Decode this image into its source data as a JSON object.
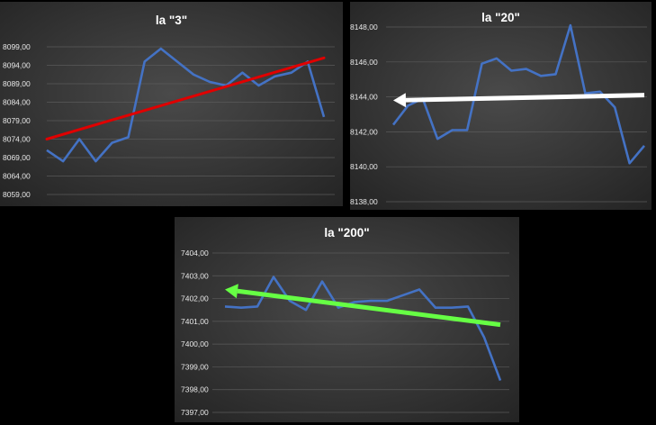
{
  "colors": {
    "background": "#000000",
    "series_line": "#4472C4",
    "gridline": "#5a5a5a"
  },
  "chart_data": [
    {
      "type": "line",
      "title": "la \"3\"",
      "ylim": [
        8059,
        8099
      ],
      "yticks": [
        "8099,00",
        "8094,00",
        "8089,00",
        "8084,00",
        "8079,00",
        "8074,00",
        "8069,00",
        "8064,00",
        "8059,00"
      ],
      "grid": true,
      "series": [
        {
          "values": [
            8071,
            8068,
            8074,
            8068,
            8073,
            8074.5,
            8095,
            8098.5,
            8095,
            8091.5,
            8089.5,
            8088.5,
            8092,
            8088.5,
            8091,
            8092,
            8095,
            8080
          ]
        }
      ],
      "trend_arrow": {
        "color": "#e00000",
        "from": [
          0,
          8074
        ],
        "to": [
          17,
          8096
        ],
        "arrowhead": false
      }
    },
    {
      "type": "line",
      "title": "la \"20\"",
      "ylim": [
        8138,
        8148
      ],
      "yticks": [
        "8148,00",
        "8146,00",
        "8144,00",
        "8142,00",
        "8140,00",
        "8138,00"
      ],
      "grid": true,
      "series": [
        {
          "values": [
            8142.4,
            8143.5,
            8143.9,
            8141.6,
            8142.1,
            8142.1,
            8145.9,
            8146.2,
            8145.5,
            8145.6,
            8145.2,
            8145.3,
            8148.1,
            8144.2,
            8144.3,
            8143.4,
            8140.2,
            8141.2
          ]
        }
      ],
      "trend_arrow": {
        "color": "#ffffff",
        "from": [
          17,
          8144.1
        ],
        "to": [
          0,
          8143.8
        ],
        "arrowhead": true
      }
    },
    {
      "type": "line",
      "title": "la \"200\"",
      "ylim": [
        7397,
        7404
      ],
      "yticks": [
        "7404,00",
        "7403,00",
        "7402,00",
        "7401,00",
        "7400,00",
        "7399,00",
        "7398,00",
        "7397,00"
      ],
      "grid": true,
      "series": [
        {
          "values": [
            7401.65,
            7401.6,
            7401.65,
            7402.95,
            7401.9,
            7401.5,
            7402.75,
            7401.6,
            7401.85,
            7401.9,
            7401.9,
            7402.15,
            7402.4,
            7401.6,
            7401.6,
            7401.65,
            7400.3,
            7398.4
          ]
        }
      ],
      "trend_arrow": {
        "color": "#66ff44",
        "from": [
          17,
          7400.85
        ],
        "to": [
          0,
          7402.4
        ],
        "arrowhead": true
      }
    }
  ]
}
